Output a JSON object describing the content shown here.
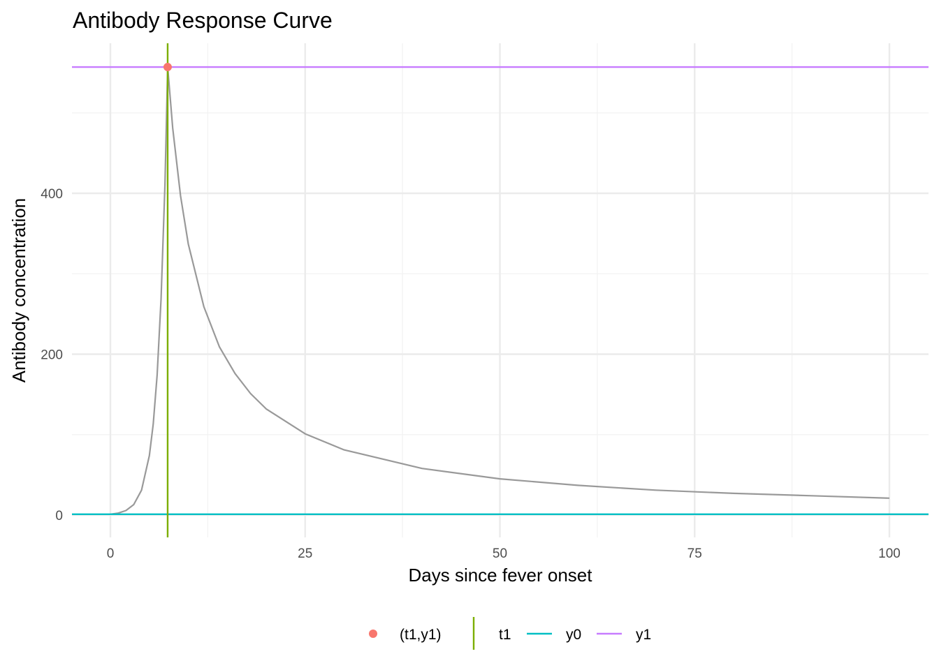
{
  "chart_data": {
    "type": "line",
    "title": "Antibody Response Curve",
    "xlabel": "Days since fever onset",
    "ylabel": "Antibody concentration",
    "xlim": [
      -10,
      105
    ],
    "ylim": [
      -27,
      587
    ],
    "x_ticks": [
      0,
      25,
      50,
      75,
      100
    ],
    "x_tick_labels": [
      "0",
      "25",
      "50",
      "75",
      "100"
    ],
    "y_ticks": [
      0,
      200,
      400
    ],
    "y_tick_labels": [
      "0",
      "200",
      "400"
    ],
    "grid": true,
    "legend_position": "bottom",
    "curve": {
      "color": "#999999",
      "x": [
        0,
        1,
        2,
        3,
        4,
        5,
        5.5,
        6,
        6.5,
        7,
        7.35,
        8,
        9,
        10,
        12,
        14,
        16,
        18,
        20,
        25,
        30,
        40,
        50,
        60,
        70,
        80,
        90,
        100
      ],
      "y": [
        1,
        2.4,
        5.6,
        13,
        31,
        74,
        113,
        174,
        268,
        411,
        557,
        481,
        397,
        337,
        259,
        209,
        176,
        151,
        132,
        101,
        81,
        58,
        45,
        37,
        31,
        27,
        24,
        21
      ]
    },
    "reference_lines": {
      "t1": {
        "value": 7.35,
        "color": "#7CAE00"
      },
      "y0": {
        "value": 1,
        "color": "#00BFC4"
      },
      "y1": {
        "value": 557,
        "color": "#C77CFF"
      }
    },
    "point": {
      "label": "(t1,y1)",
      "x": 7.35,
      "y": 557,
      "color": "#F8766D"
    },
    "legend": [
      {
        "label": "(t1,y1)",
        "kind": "point",
        "color": "#F8766D"
      },
      {
        "label": "t1",
        "kind": "vline",
        "color": "#7CAE00"
      },
      {
        "label": "y0",
        "kind": "hline",
        "color": "#00BFC4"
      },
      {
        "label": "y1",
        "kind": "hline",
        "color": "#C77CFF"
      }
    ]
  }
}
